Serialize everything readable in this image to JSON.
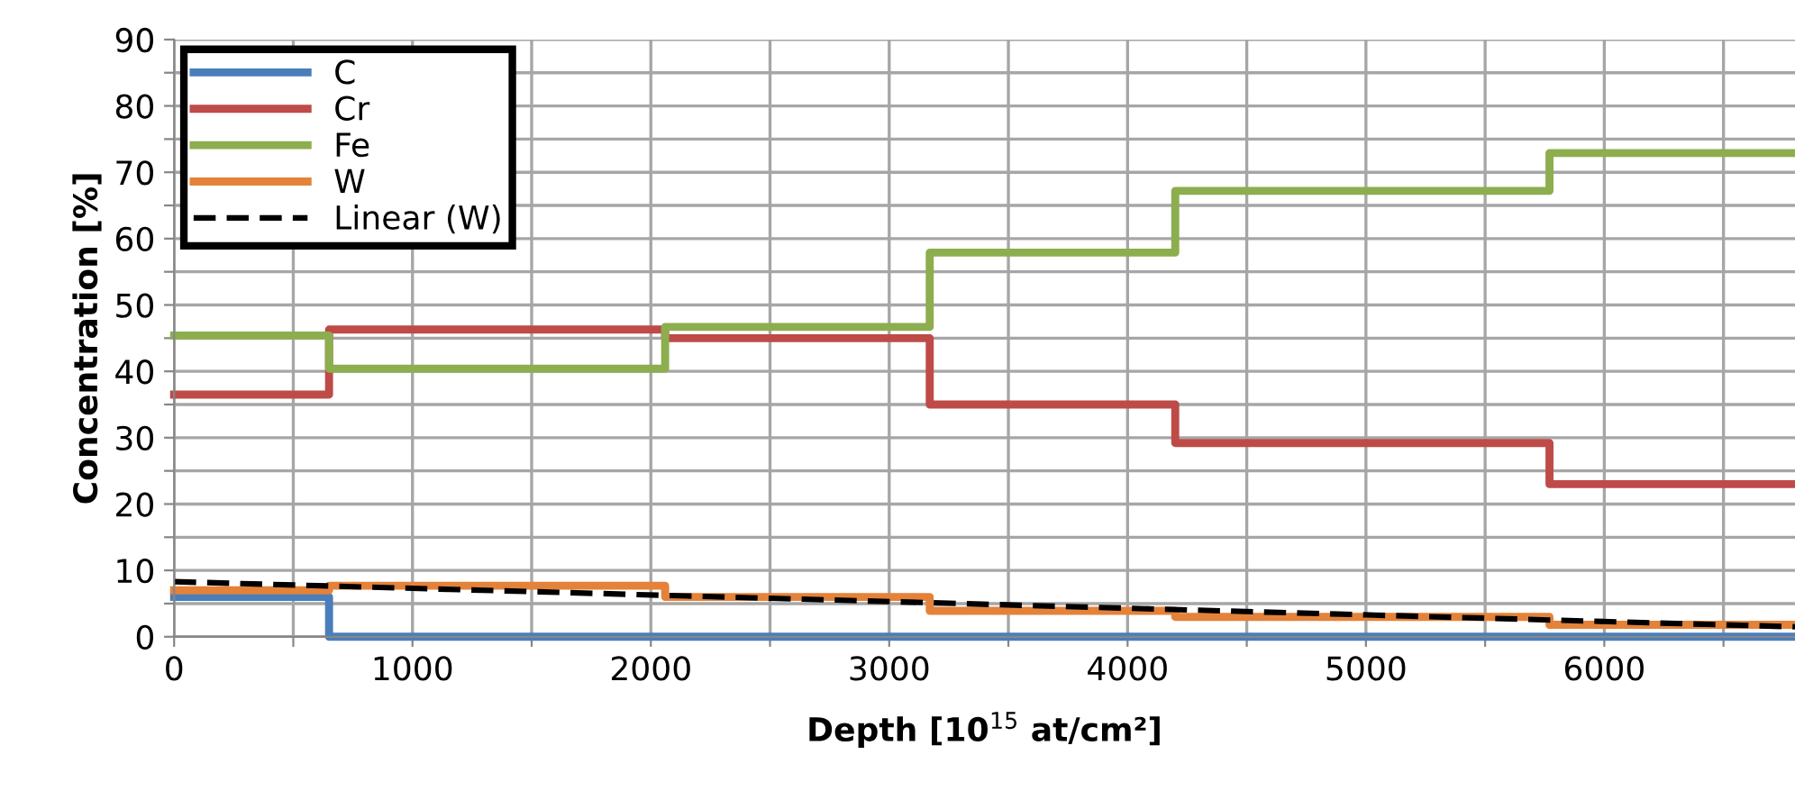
{
  "chart_data": {
    "type": "step",
    "xlabel": "Depth [10$^{15}$ at/cm²]",
    "ylabel": "Concentration [%]",
    "xlim": [
      0,
      6800
    ],
    "ylim": [
      0,
      90
    ],
    "xticks": [
      0,
      {
        "value": 500,
        "label": null
      },
      1000,
      {
        "value": 1500,
        "label": null
      },
      2000,
      {
        "value": 2500,
        "label": null
      },
      3000,
      {
        "value": 3500,
        "label": null
      },
      4000,
      {
        "value": 4500,
        "label": null
      },
      5000,
      {
        "value": 5500,
        "label": null
      },
      6000,
      {
        "value": 6500,
        "label": null
      }
    ],
    "yticks": [
      0,
      {
        "value": 5,
        "label": null
      },
      10,
      {
        "value": 15,
        "label": null
      },
      20,
      {
        "value": 25,
        "label": null
      },
      30,
      {
        "value": 35,
        "label": null
      },
      40,
      {
        "value": 45,
        "label": null
      },
      50,
      {
        "value": 55,
        "label": null
      },
      60,
      {
        "value": 65,
        "label": null
      },
      70,
      {
        "value": 75,
        "label": null
      },
      80,
      {
        "value": 85,
        "label": null
      },
      90
    ],
    "grid": true,
    "legend": "top left",
    "series": [
      {
        "name": "C",
        "color": "#4a7ebb",
        "x": [
          0,
          650,
          2060,
          3170,
          4200,
          5770,
          6800
        ],
        "values": [
          6,
          0,
          0,
          0,
          0,
          0,
          0
        ]
      },
      {
        "name": "Cr",
        "color": "#be4b48",
        "x": [
          0,
          650,
          2060,
          3170,
          4200,
          5770,
          6800
        ],
        "values": [
          36.5,
          46.3,
          45,
          35,
          29.2,
          23,
          23
        ]
      },
      {
        "name": "Fe",
        "color": "#8cae4e",
        "x": [
          0,
          650,
          2060,
          3170,
          4200,
          5770,
          6800
        ],
        "values": [
          45.4,
          40.4,
          46.7,
          57.9,
          67.2,
          72.9,
          72.9
        ]
      },
      {
        "name": "W",
        "color": "#e4823a",
        "x": [
          0,
          650,
          2060,
          3170,
          4200,
          5770,
          6800
        ],
        "values": [
          7,
          7.7,
          6,
          3.9,
          3,
          1.8,
          1.8
        ]
      },
      {
        "name": "Linear (W)",
        "color": "#000000",
        "type": "line",
        "line_style": "dashed",
        "x": [
          0,
          6800
        ],
        "values": [
          8.3,
          1.5
        ]
      }
    ]
  }
}
